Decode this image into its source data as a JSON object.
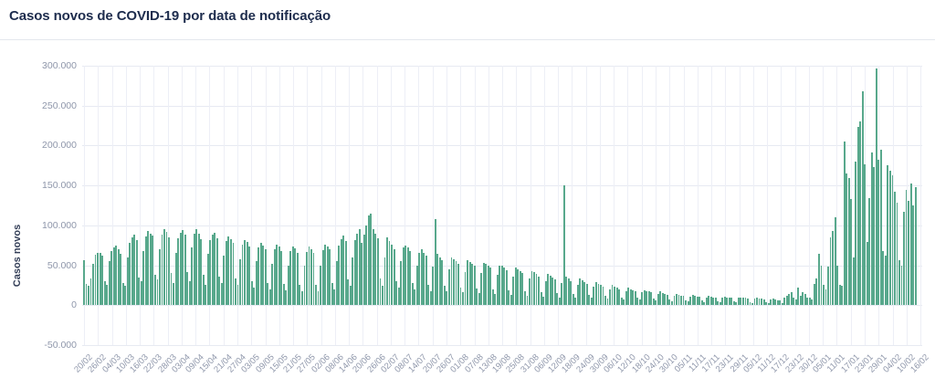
{
  "header": {
    "title": "Casos novos de COVID-19 por data de notificação"
  },
  "chart_data": {
    "type": "bar",
    "title": "Casos novos de COVID-19 por data de notificação",
    "xlabel": "",
    "ylabel": "Casos novos",
    "ylim": [
      -50000,
      300000
    ],
    "grid": true,
    "legend_position": "none",
    "bar_color": "#58a88c",
    "ytick_values": [
      300000,
      250000,
      200000,
      150000,
      100000,
      50000,
      0,
      -50000
    ],
    "ytick_labels": [
      "300.000",
      "250.000",
      "200.000",
      "150.000",
      "100.000",
      "50.000",
      "0",
      "-50.000"
    ],
    "x_start_date": "20/02",
    "x_end_date": "16/02",
    "num_bars": 363,
    "xtick_labels": [
      "20/02",
      "26/02",
      "04/03",
      "10/03",
      "16/03",
      "22/03",
      "28/03",
      "03/04",
      "09/04",
      "15/04",
      "21/04",
      "27/04",
      "03/05",
      "09/05",
      "15/05",
      "21/05",
      "27/05",
      "02/06",
      "08/06",
      "14/06",
      "20/06",
      "26/06",
      "02/07",
      "08/07",
      "14/07",
      "20/07",
      "26/07",
      "01/08",
      "07/08",
      "13/08",
      "19/08",
      "25/08",
      "31/08",
      "06/09",
      "12/09",
      "18/09",
      "24/09",
      "30/09",
      "06/10",
      "12/10",
      "18/10",
      "24/10",
      "30/10",
      "05/11",
      "11/11",
      "17/11",
      "23/11",
      "29/11",
      "05/12",
      "11/12",
      "17/12",
      "23/12",
      "30/12",
      "05/01",
      "11/01",
      "17/01",
      "23/01",
      "29/01",
      "04/02",
      "10/02",
      "16/02"
    ],
    "values": [
      56000,
      27000,
      24000,
      33000,
      52000,
      63000,
      66000,
      65000,
      62000,
      30000,
      26000,
      55000,
      68000,
      72000,
      75000,
      70000,
      64000,
      28000,
      24000,
      60000,
      78000,
      85000,
      88000,
      82000,
      35000,
      30000,
      68000,
      86000,
      93000,
      90000,
      87000,
      38000,
      32000,
      70000,
      88000,
      95000,
      92000,
      85000,
      40000,
      28000,
      65000,
      84000,
      91000,
      94000,
      88000,
      42000,
      30000,
      72000,
      90000,
      95000,
      89000,
      83000,
      38000,
      26000,
      64000,
      82000,
      88000,
      91000,
      84000,
      36000,
      28000,
      62000,
      80000,
      86000,
      83000,
      78000,
      34000,
      25000,
      58000,
      76000,
      82000,
      79000,
      73000,
      30000,
      22000,
      55000,
      72000,
      78000,
      75000,
      70000,
      28000,
      20000,
      52000,
      70000,
      76000,
      73000,
      68000,
      27000,
      19000,
      50000,
      68000,
      74000,
      71000,
      66000,
      26000,
      18000,
      49000,
      67000,
      73000,
      70000,
      65000,
      25000,
      18000,
      50000,
      69000,
      76000,
      74000,
      70000,
      28000,
      20000,
      55000,
      75000,
      83000,
      87000,
      80000,
      32000,
      24000,
      60000,
      82000,
      90000,
      95000,
      78000,
      88000,
      100000,
      113000,
      115000,
      95000,
      90000,
      84000,
      33000,
      24000,
      60000,
      85000,
      80000,
      76000,
      70000,
      30000,
      22000,
      55000,
      72000,
      75000,
      72000,
      68000,
      28000,
      20000,
      50000,
      66000,
      70000,
      66000,
      62000,
      26000,
      18000,
      48000,
      108000,
      64000,
      60000,
      56000,
      24000,
      17000,
      45000,
      60000,
      58000,
      55000,
      52000,
      22000,
      16000,
      42000,
      56000,
      54000,
      52000,
      49000,
      21000,
      15000,
      40000,
      53000,
      52000,
      50000,
      47000,
      20000,
      14000,
      38000,
      50000,
      49000,
      47000,
      44000,
      19000,
      13000,
      36000,
      47000,
      45000,
      43000,
      40000,
      18000,
      12000,
      33000,
      43000,
      41000,
      39000,
      36000,
      16000,
      11000,
      30000,
      39000,
      37000,
      35000,
      32000,
      15000,
      10000,
      28000,
      150000,
      36000,
      34000,
      30000,
      14000,
      10000,
      26000,
      33000,
      31000,
      29000,
      27000,
      13000,
      9000,
      23000,
      29000,
      27000,
      25000,
      23000,
      12000,
      8000,
      20000,
      25000,
      23000,
      22000,
      20000,
      10000,
      7000,
      18000,
      22000,
      20000,
      19000,
      18000,
      9000,
      7000,
      16000,
      19000,
      18000,
      17000,
      16000,
      8000,
      6000,
      14000,
      17000,
      15000,
      14000,
      13000,
      7000,
      5000,
      12000,
      14000,
      13000,
      12000,
      12000,
      6000,
      5000,
      11000,
      13000,
      12000,
      11000,
      11000,
      6000,
      4000,
      10000,
      12000,
      11000,
      10000,
      10000,
      5000,
      4000,
      9000,
      11000,
      10000,
      10000,
      9000,
      5000,
      4000,
      9000,
      10000,
      9000,
      9000,
      8000,
      4000,
      3000,
      8000,
      9000,
      8000,
      8000,
      7000,
      4000,
      3000,
      7000,
      8000,
      7000,
      6000,
      6000,
      3000,
      10000,
      12000,
      14000,
      16000,
      10000,
      7000,
      22000,
      12000,
      16000,
      14000,
      9000,
      10000,
      7000,
      27000,
      34000,
      64000,
      50000,
      25000,
      20000,
      48000,
      85000,
      93000,
      110000,
      50000,
      26000,
      24000,
      205000,
      165000,
      159000,
      133000,
      60000,
      180000,
      223000,
      230000,
      268000,
      176000,
      79000,
      134000,
      191000,
      173000,
      297000,
      182000,
      195000,
      68000,
      62000,
      175000,
      168000,
      163000,
      142000,
      128000,
      56000,
      50000,
      117000,
      144000,
      131000,
      152000,
      125000,
      148000
    ]
  }
}
